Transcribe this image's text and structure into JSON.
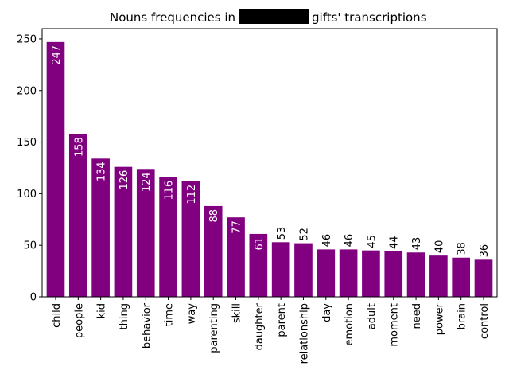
{
  "chart_data": {
    "type": "bar",
    "title_prefix": "Nouns frequencies in",
    "title_suffix": "gifts' transcriptions",
    "title_redacted": true,
    "xlabel": "",
    "ylabel": "",
    "ylim": [
      0,
      260
    ],
    "yticks": [
      0,
      50,
      100,
      150,
      200,
      250
    ],
    "categories": [
      "child",
      "people",
      "kid",
      "thing",
      "behavior",
      "time",
      "way",
      "parenting",
      "skill",
      "daughter",
      "parent",
      "relationship",
      "day",
      "emotion",
      "adult",
      "moment",
      "need",
      "power",
      "brain",
      "control"
    ],
    "values": [
      247,
      158,
      134,
      126,
      124,
      116,
      112,
      88,
      77,
      61,
      53,
      52,
      46,
      46,
      45,
      44,
      43,
      40,
      38,
      36
    ],
    "grid": false,
    "legend": "none"
  },
  "colors": {
    "bar": "#800080",
    "label_inside": "#ffffff",
    "label_outside": "#000000",
    "redaction": "#000000",
    "axis": "#000000"
  }
}
